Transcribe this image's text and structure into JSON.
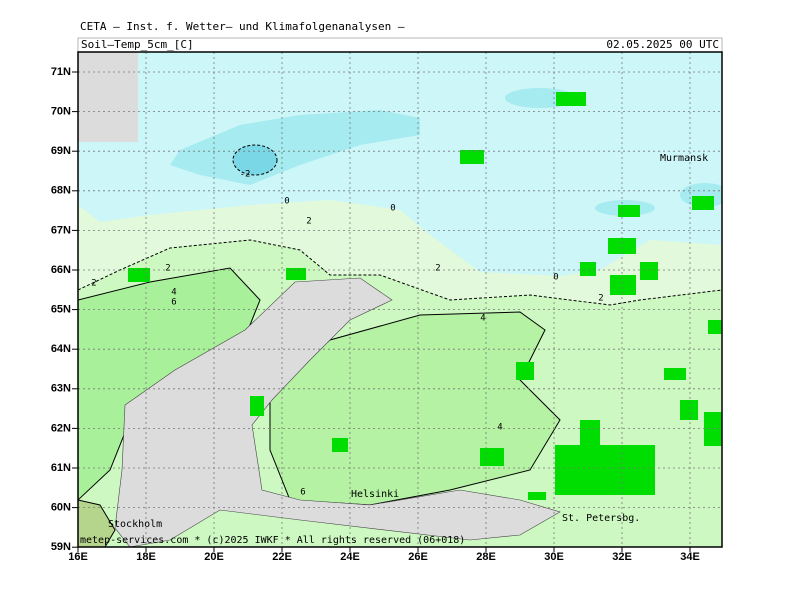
{
  "header": "CETA — Inst. f. Wetter— und Klimafolgenanalysen —",
  "title": "Soil—Temp_5cm_[C]",
  "date": "02.05.2025  00 UTC",
  "footer": "metep-services.com * (c)2025 IWKF * All rights reserved (06+018)",
  "lat_labels": [
    "71N",
    "70N",
    "69N",
    "68N",
    "67N",
    "66N",
    "65N",
    "64N",
    "63N",
    "62N",
    "61N",
    "60N",
    "59N"
  ],
  "lon_labels": [
    "16E",
    "18E",
    "20E",
    "22E",
    "24E",
    "26E",
    "28E",
    "30E",
    "32E",
    "34E"
  ],
  "places": [
    "Murmansk",
    "Helsinki",
    "Stockholm",
    "St. Petersbg."
  ],
  "contour_labels": [
    "-2",
    "0",
    "0",
    "2",
    "2",
    "2",
    "4",
    "6",
    "2",
    "0",
    "2",
    "4",
    "4",
    "6"
  ]
}
